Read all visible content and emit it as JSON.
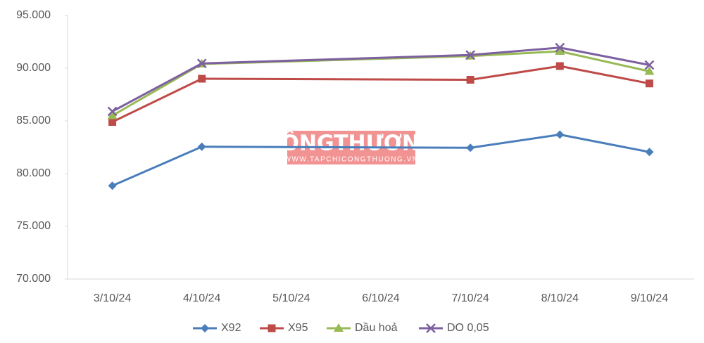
{
  "chart_data": {
    "type": "line",
    "categories": [
      "3/10/24",
      "4/10/24",
      "5/10/24",
      "6/10/24",
      "7/10/24",
      "8/10/24",
      "9/10/24"
    ],
    "series": [
      {
        "name": "X92",
        "color": "#4a7ebb",
        "marker": "diamond",
        "values": [
          78850,
          82550,
          null,
          null,
          82450,
          83700,
          82050
        ]
      },
      {
        "name": "X95",
        "color": "#be4b48",
        "marker": "square",
        "values": [
          84900,
          89000,
          null,
          null,
          88900,
          90200,
          88550
        ]
      },
      {
        "name": "Dầu hoả",
        "color": "#98b954",
        "marker": "triangle",
        "values": [
          85500,
          90400,
          null,
          null,
          91150,
          91600,
          89700
        ]
      },
      {
        "name": "DO 0,05",
        "color": "#7d60a0",
        "marker": "x",
        "values": [
          85900,
          90450,
          null,
          null,
          91250,
          91950,
          90300
        ]
      }
    ],
    "ylim": [
      70000,
      95000
    ],
    "yticks": [
      {
        "value": 70000,
        "label": "70.000"
      },
      {
        "value": 75000,
        "label": "75.000"
      },
      {
        "value": 80000,
        "label": "80.000"
      },
      {
        "value": 85000,
        "label": "85.000"
      },
      {
        "value": 90000,
        "label": "90.000"
      },
      {
        "value": 95000,
        "label": "95.000"
      }
    ],
    "legend": "bottom",
    "watermark": {
      "text": "CÔNGTHƯƠNG",
      "url": "WWW.TAPCHICONGTHUONG.VN"
    }
  }
}
